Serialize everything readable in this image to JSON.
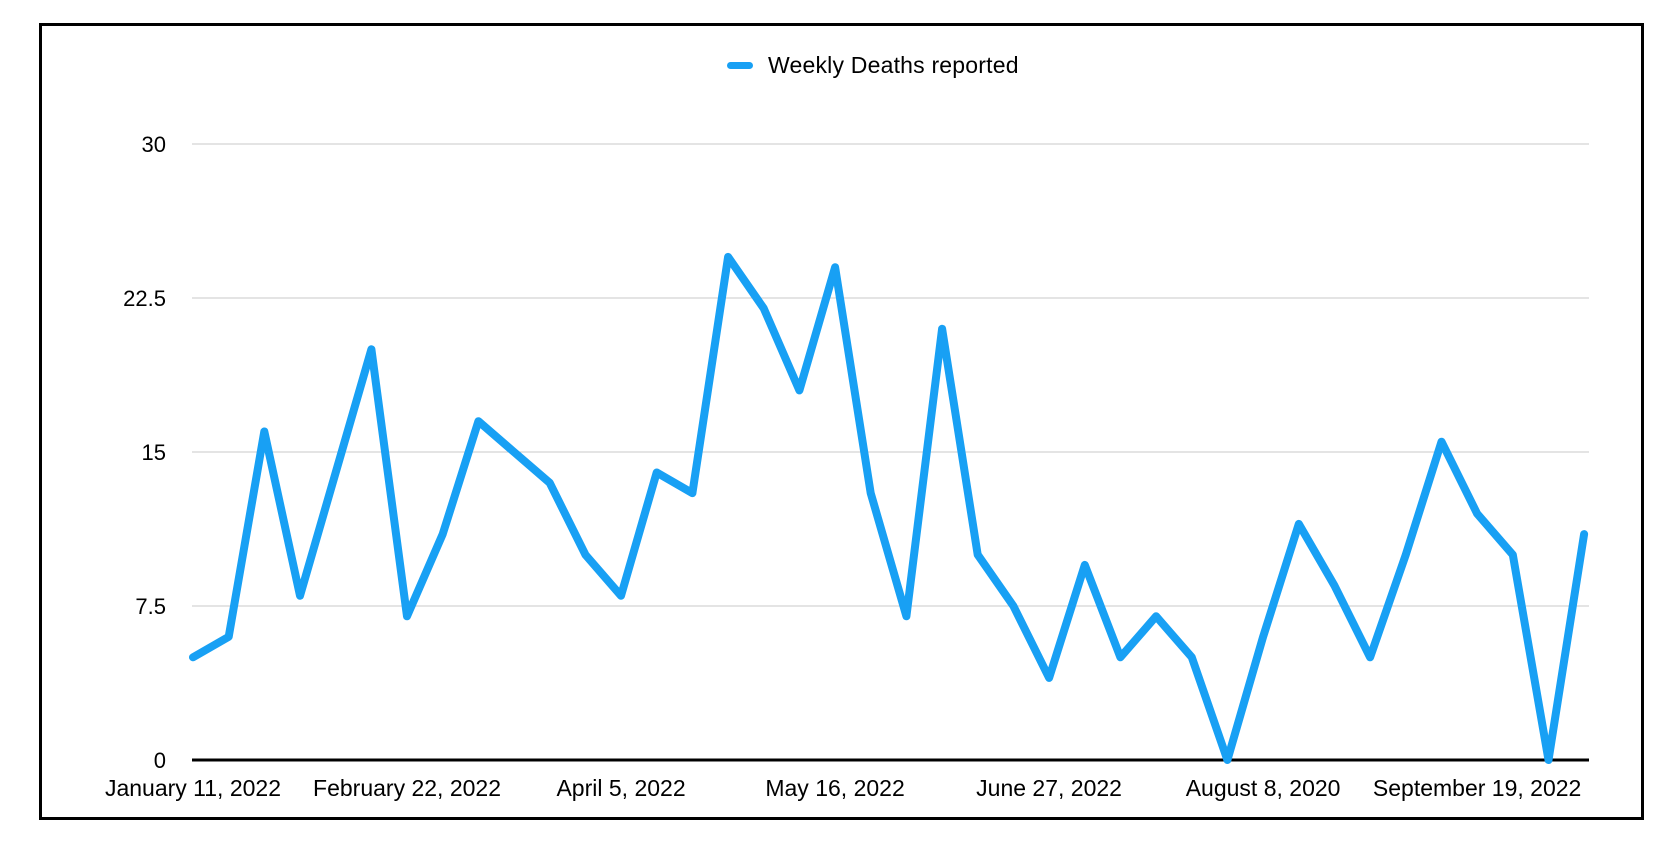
{
  "chart_data": {
    "type": "line",
    "legend": "Weekly Deaths reported",
    "series_name": "Weekly Deaths reported",
    "series_color": "#18a0f4",
    "values": [
      5,
      6,
      16,
      8,
      14,
      20,
      7,
      11,
      16.5,
      15,
      13.5,
      10,
      8,
      14,
      13,
      24.5,
      22,
      18,
      24,
      13,
      7,
      21,
      10,
      7.5,
      4,
      9.5,
      5,
      7,
      5,
      0,
      6,
      11.5,
      8.5,
      5,
      10,
      15.5,
      12,
      10,
      0,
      11
    ],
    "x_tick_labels": [
      "January 11, 2022",
      "February 22, 2022",
      "April 5, 2022",
      "May 16, 2022",
      "June 27, 2022",
      "August 8, 2020",
      "September 19, 2022"
    ],
    "x_tick_interval_points": 6,
    "y_ticks": [
      0,
      7.5,
      15,
      22.5,
      30
    ],
    "ylim": [
      0,
      30
    ],
    "grid": true,
    "legend_position": "top-center",
    "axis_color": "#000000",
    "gridline_color": "#c8c8c8",
    "text_color": "#000000"
  }
}
